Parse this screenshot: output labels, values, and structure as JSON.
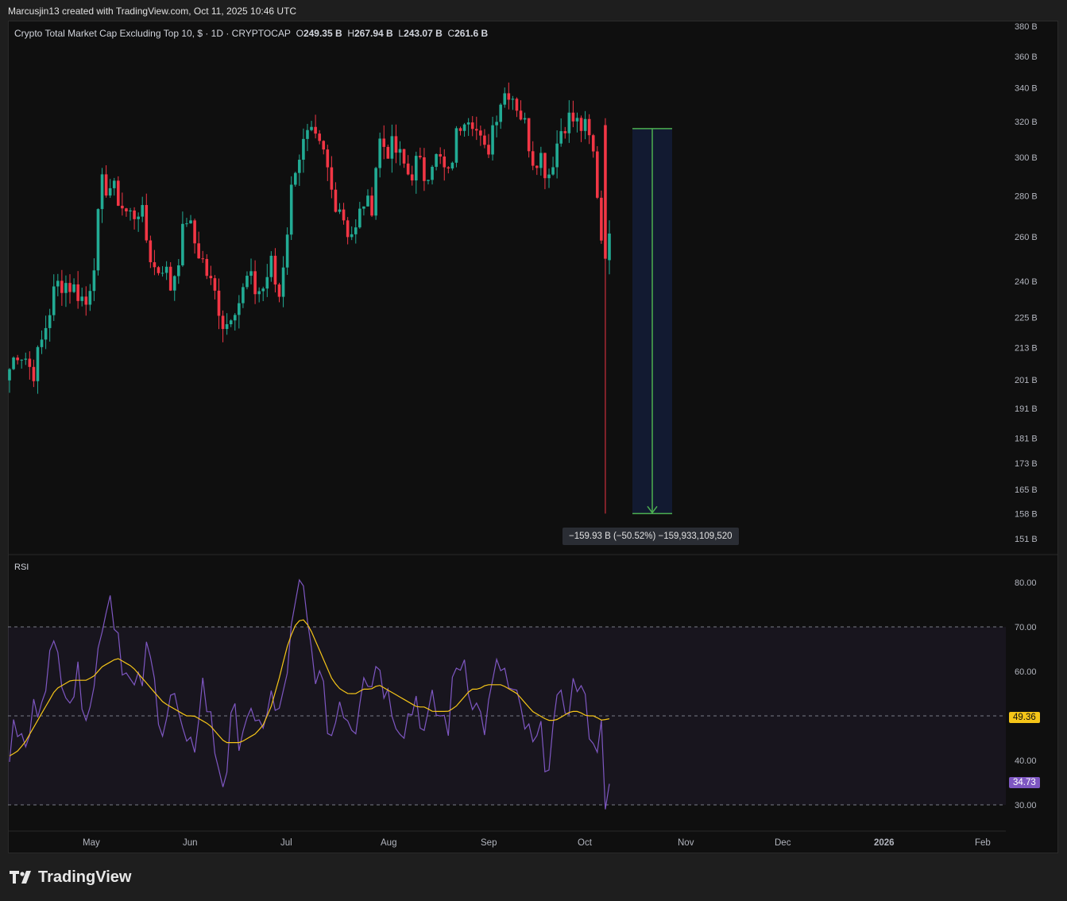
{
  "header": {
    "attribution": "Marcusjin13 created with TradingView.com, Oct 11, 2025 10:46 UTC"
  },
  "legend": {
    "title": "Crypto Total Market Cap Excluding Top 10, $ · 1D · CRYPTOCAP",
    "o_label": "O",
    "o_value": "249.35 B",
    "h_label": "H",
    "h_value": "267.94 B",
    "l_label": "L",
    "l_value": "243.07 B",
    "c_label": "C",
    "c_value": "261.6 B"
  },
  "measure": {
    "text": "−159.93 B (−50.52%) −159,933,109,520"
  },
  "rsi": {
    "label": "RSI",
    "current_value": "34.73",
    "ma_value": "49.36"
  },
  "footer": {
    "brand": "TradingView"
  },
  "colors": {
    "up": "#22ab94",
    "down": "#f23645",
    "rsi": "#7e57c2",
    "rsi_ma": "#f5c518",
    "measure_fill": "#131c35",
    "measure_line": "#4caf50"
  },
  "chart_data": [
    {
      "type": "candlestick",
      "title": "Crypto Total Market Cap Excluding Top 10",
      "scale": "log",
      "ylim": [
        151,
        380
      ],
      "y_ticks": [
        "380 B",
        "360 B",
        "340 B",
        "320 B",
        "300 B",
        "280 B",
        "260 B",
        "240 B",
        "225 B",
        "213 B",
        "201 B",
        "191 B",
        "181 B",
        "173 B",
        "165 B",
        "158 B",
        "151 B"
      ],
      "x_ticks": [
        "May",
        "Jun",
        "Jul",
        "Aug",
        "Sep",
        "Oct",
        "Nov",
        "Dec",
        "2026",
        "Feb"
      ],
      "y_tick_values": [
        380,
        360,
        340,
        320,
        300,
        280,
        260,
        240,
        225,
        213,
        201,
        191,
        181,
        173,
        165,
        158,
        151
      ],
      "close_path": [
        205,
        212,
        210,
        203,
        213,
        225,
        238,
        240,
        238,
        235,
        230,
        250,
        285,
        285,
        280,
        272,
        270,
        275,
        255,
        244,
        248,
        237,
        252,
        270,
        258,
        250,
        240,
        232,
        220,
        230,
        232,
        242,
        236,
        237,
        248,
        232,
        260,
        295,
        305,
        312,
        306,
        300,
        280,
        275,
        263,
        262,
        278,
        272,
        310,
        305,
        305,
        298,
        290,
        298,
        290,
        300,
        298,
        288,
        310,
        325,
        326,
        310,
        300,
        322,
        335,
        340,
        330,
        318,
        300,
        302,
        290,
        305,
        320,
        322,
        318,
        315,
        300,
        258,
        261.6
      ],
      "drop": {
        "from": 316,
        "to": 158,
        "delta": "−159.93 B",
        "pct": "−50.52%"
      }
    },
    {
      "type": "line",
      "title": "RSI",
      "ylim": [
        28,
        82
      ],
      "y_ticks": [
        "80.00",
        "70.00",
        "60.00",
        "40.00",
        "30.00"
      ],
      "y_tick_values": [
        80,
        70,
        60,
        40,
        30
      ],
      "bands": [
        30,
        50,
        70
      ],
      "rsi": [
        42,
        48,
        41,
        50,
        55,
        62,
        64,
        60,
        55,
        58,
        53,
        56,
        72,
        78,
        70,
        60,
        55,
        56,
        65,
        55,
        48,
        55,
        50,
        40,
        43,
        58,
        50,
        40,
        35,
        50,
        46,
        52,
        44,
        50,
        54,
        48,
        60,
        72,
        80,
        66,
        60,
        52,
        45,
        55,
        50,
        48,
        62,
        58,
        63,
        55,
        52,
        48,
        50,
        55,
        45,
        52,
        50,
        48,
        60,
        64,
        56,
        50,
        48,
        58,
        62,
        55,
        52,
        48,
        42,
        45,
        40,
        50,
        52,
        55,
        58,
        50,
        46,
        30,
        34.73
      ],
      "rsi_ma": [
        41,
        42,
        44,
        47,
        50,
        53,
        56,
        57,
        58,
        58,
        58,
        59,
        61,
        62,
        63,
        62,
        61,
        59,
        57,
        55,
        53,
        52,
        51,
        50,
        50,
        49,
        48,
        46,
        44,
        44,
        44,
        45,
        46,
        48,
        52,
        58,
        65,
        70,
        72,
        70,
        66,
        62,
        58,
        56,
        55,
        55,
        56,
        56,
        57,
        56,
        55,
        54,
        53,
        52,
        52,
        51,
        51,
        51,
        52,
        54,
        56,
        56,
        57,
        57,
        57,
        56,
        55,
        53,
        51,
        50,
        49,
        49,
        50,
        51,
        51,
        50,
        50,
        49,
        49.36
      ],
      "current": 34.73,
      "ma_current": 49.36
    }
  ]
}
